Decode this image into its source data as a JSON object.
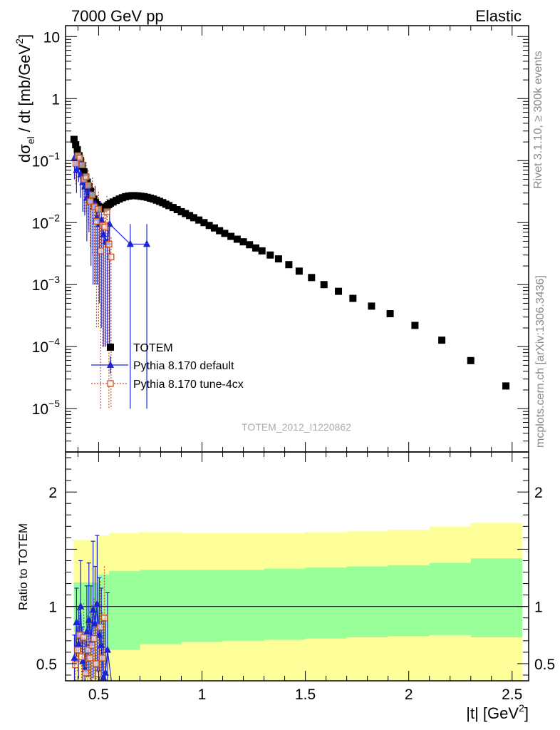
{
  "header": {
    "left": "7000 GeV pp",
    "right": "Elastic"
  },
  "side_labels": {
    "rivet": "Rivet 3.1.10, ≥ 300k events",
    "mcplots": "mcplots.cern.ch [arXiv:1306.3436]"
  },
  "watermark": "TOTEM_2012_I1220862",
  "chart_data": [
    {
      "type": "scatter",
      "panel": "main",
      "ylabel": "dσel / dt [mb/GeV2]",
      "ylabel_parts": {
        "d": "d",
        "sigma": "σ",
        "sub": "el",
        "rest": " / dt [mb/GeV",
        "sup": "2",
        "close": "]"
      },
      "yscale": "log",
      "xlim": [
        0.34,
        2.58
      ],
      "ylim": [
        2e-06,
        15
      ],
      "yticks": [
        {
          "v": 10,
          "label": "10"
        },
        {
          "v": 1,
          "label": "1"
        },
        {
          "v": 0.1,
          "base": "10",
          "exp": "−1"
        },
        {
          "v": 0.01,
          "base": "10",
          "exp": "−2"
        },
        {
          "v": 0.001,
          "base": "10",
          "exp": "−3"
        },
        {
          "v": 0.0001,
          "base": "10",
          "exp": "−4"
        },
        {
          "v": 1e-05,
          "base": "10",
          "exp": "−5"
        }
      ],
      "legend_position": "middle-left",
      "series": [
        {
          "name": "TOTEM",
          "color": "#000000",
          "marker": "square-filled",
          "x": [
            0.381,
            0.389,
            0.397,
            0.405,
            0.413,
            0.421,
            0.429,
            0.437,
            0.445,
            0.453,
            0.461,
            0.469,
            0.477,
            0.485,
            0.493,
            0.501,
            0.509,
            0.517,
            0.525,
            0.533,
            0.541,
            0.549,
            0.557,
            0.57,
            0.585,
            0.6,
            0.615,
            0.63,
            0.645,
            0.66,
            0.675,
            0.69,
            0.705,
            0.72,
            0.735,
            0.75,
            0.765,
            0.78,
            0.795,
            0.81,
            0.825,
            0.84,
            0.86,
            0.88,
            0.9,
            0.92,
            0.94,
            0.96,
            0.985,
            1.01,
            1.035,
            1.06,
            1.085,
            1.11,
            1.14,
            1.17,
            1.2,
            1.23,
            1.26,
            1.29,
            1.33,
            1.37,
            1.42,
            1.47,
            1.53,
            1.59,
            1.66,
            1.73,
            1.82,
            1.91,
            2.03,
            2.16,
            2.3,
            2.47
          ],
          "y": [
            0.22,
            0.18,
            0.15,
            0.12,
            0.1,
            0.082,
            0.066,
            0.054,
            0.045,
            0.038,
            0.032,
            0.027,
            0.024,
            0.021,
            0.0195,
            0.018,
            0.0172,
            0.0168,
            0.017,
            0.0176,
            0.0185,
            0.0195,
            0.0205,
            0.0215,
            0.0228,
            0.024,
            0.0252,
            0.0262,
            0.0268,
            0.0272,
            0.0272,
            0.027,
            0.0266,
            0.0262,
            0.0256,
            0.0248,
            0.024,
            0.023,
            0.022,
            0.021,
            0.0198,
            0.0188,
            0.0175,
            0.0162,
            0.015,
            0.014,
            0.013,
            0.012,
            0.011,
            0.01,
            0.009,
            0.0082,
            0.0074,
            0.0067,
            0.006,
            0.0054,
            0.0049,
            0.0044,
            0.0039,
            0.0035,
            0.003,
            0.0026,
            0.0021,
            0.00165,
            0.0013,
            0.001,
            0.00078,
            0.0006,
            0.00045,
            0.00034,
            0.00022,
            0.000127,
            5.95e-05,
            2.32e-05
          ]
        },
        {
          "name": "Pythia 8.170 default",
          "color": "#1a24d6",
          "marker": "triangle-filled",
          "x": [
            0.383,
            0.393,
            0.403,
            0.413,
            0.423,
            0.433,
            0.443,
            0.453,
            0.463,
            0.473,
            0.483,
            0.493,
            0.503,
            0.513,
            0.523,
            0.533,
            0.543,
            0.553,
            0.573,
            0.593,
            0.613,
            0.633,
            0.653,
            0.673,
            0.693,
            0.713,
            0.733
          ],
          "y": [
            0.11,
            0.07,
            0.095,
            0.06,
            0.045,
            0.038,
            0.025,
            0.032,
            0.022,
            0.018,
            0.02,
            0.012,
            0.0095,
            0.011,
            0.0065,
            0.005,
            0.0048,
            0.0095,
            null,
            null,
            null,
            null,
            0.0045,
            null,
            null,
            null,
            0.0045
          ],
          "yerr_lo": [
            0.06,
            0.04,
            0.05,
            0.035,
            0.03,
            0.025,
            0.02,
            0.025,
            0.02,
            0.017,
            0.019,
            0.011,
            0.009,
            0.0108,
            0.0064,
            0.0049,
            0.0047,
            0.0094,
            null,
            null,
            null,
            null,
            0.00449,
            null,
            null,
            null,
            0.00449
          ],
          "yerr_hi": [
            0.06,
            0.04,
            0.05,
            0.035,
            0.03,
            0.025,
            0.02,
            0.025,
            0.02,
            0.017,
            0.019,
            0.011,
            0.009,
            0.01,
            0.006,
            0.005,
            0.005,
            0.005,
            null,
            null,
            null,
            null,
            0.005,
            null,
            null,
            null,
            0.005
          ]
        },
        {
          "name": "Pythia 8.170 tune-4cx",
          "color": "#c8521a",
          "marker": "square-open",
          "x": [
            0.383,
            0.393,
            0.403,
            0.413,
            0.423,
            0.433,
            0.443,
            0.453,
            0.463,
            0.473,
            0.483,
            0.493,
            0.503,
            0.513,
            0.523,
            0.533,
            0.543,
            0.553
          ],
          "y": [
            0.09,
            0.12,
            0.11,
            0.085,
            0.05,
            0.055,
            0.04,
            0.022,
            0.028,
            0.018,
            0.0105,
            0.0165,
            0.0035,
            0.009,
            0.0085,
            0.015,
            0.0045,
            0.0028
          ],
          "yerr_lo": [
            0.05,
            0.06,
            0.06,
            0.05,
            0.035,
            0.04,
            0.03,
            0.018,
            0.025,
            0.017,
            0.0103,
            0.0163,
            0.00349,
            0.0089,
            0.0084,
            0.0149,
            0.00449,
            0.00279
          ],
          "yerr_hi": [
            0.05,
            0.06,
            0.06,
            0.05,
            0.035,
            0.04,
            0.03,
            0.018,
            0.025,
            0.017,
            0.01,
            0.015,
            0.004,
            0.008,
            0.008,
            0.012,
            0.004,
            0.003
          ]
        }
      ]
    },
    {
      "type": "scatter",
      "panel": "ratio",
      "ylabel": "Ratio to TOTEM",
      "xlabel": "|t| [GeV2]",
      "xlabel_parts": {
        "base": "|t| [GeV",
        "sup": "2",
        "close": "]"
      },
      "xlim": [
        0.34,
        2.58
      ],
      "ylim": [
        0.35,
        2.35
      ],
      "xticks": [
        {
          "v": 0.5,
          "label": "0.5"
        },
        {
          "v": 1,
          "label": "1"
        },
        {
          "v": 1.5,
          "label": "1.5"
        },
        {
          "v": 2,
          "label": "2"
        },
        {
          "v": 2.5,
          "label": "2.5"
        }
      ],
      "yticks": [
        {
          "v": 0.5,
          "label": "0.5"
        },
        {
          "v": 1,
          "label": "1"
        },
        {
          "v": 2,
          "label": "2"
        }
      ],
      "reference_line": 1,
      "bands": {
        "x": [
          0.38,
          0.5,
          0.55,
          0.7,
          0.9,
          1.1,
          1.3,
          1.5,
          1.7,
          1.9,
          2.1,
          2.3,
          2.55
        ],
        "green_lo": [
          0.78,
          0.64,
          0.62,
          0.67,
          0.69,
          0.7,
          0.71,
          0.72,
          0.73,
          0.74,
          0.75,
          0.73,
          0.72
        ],
        "green_hi": [
          1.21,
          1.28,
          1.31,
          1.32,
          1.32,
          1.32,
          1.33,
          1.34,
          1.35,
          1.36,
          1.38,
          1.42,
          1.45
        ],
        "yellow_lo": [
          0.35,
          0.35,
          0.35,
          0.35,
          0.35,
          0.35,
          0.35,
          0.35,
          0.35,
          0.35,
          0.35,
          0.35,
          0.35
        ],
        "yellow_hi": [
          1.58,
          1.62,
          1.64,
          1.65,
          1.64,
          1.64,
          1.64,
          1.65,
          1.66,
          1.67,
          1.7,
          1.73,
          1.77
        ],
        "green_color": "#99ff99",
        "yellow_color": "#ffff99"
      },
      "series": [
        {
          "name": "Pythia 8.170 default",
          "color": "#1a24d6",
          "x": [
            0.383,
            0.393,
            0.403,
            0.413,
            0.423,
            0.433,
            0.443,
            0.453,
            0.463,
            0.473,
            0.483,
            0.493,
            0.503,
            0.513,
            0.523,
            0.533,
            0.543
          ],
          "y": [
            0.55,
            0.86,
            0.67,
            1.0,
            0.52,
            0.45,
            0.78,
            0.88,
            0.68,
            0.97,
            0.85,
            1.02,
            0.75,
            0.66,
            0.38,
            0.42,
            0.62
          ],
          "yerr": [
            0.2,
            0.3,
            0.3,
            0.4,
            0.3,
            0.3,
            0.4,
            0.5,
            0.5,
            0.6,
            0.5,
            0.6,
            0.5,
            0.5,
            0.5,
            0.5,
            0.5
          ]
        },
        {
          "name": "Pythia 8.170 tune-4cx",
          "color": "#c8521a",
          "x": [
            0.381,
            0.391,
            0.401,
            0.411,
            0.421,
            0.431,
            0.441,
            0.451,
            0.461,
            0.471,
            0.481,
            0.491,
            0.501,
            0.511,
            0.521
          ],
          "y": [
            0.49,
            0.62,
            0.75,
            0.56,
            0.73,
            0.42,
            0.62,
            0.55,
            0.66,
            0.72,
            0.5,
            0.41,
            0.82,
            0.55,
            0.9
          ],
          "yerr": [
            0.15,
            0.2,
            0.25,
            0.25,
            0.3,
            0.3,
            0.3,
            0.3,
            0.35,
            0.35,
            0.35,
            0.4,
            0.4,
            0.4,
            0.45
          ]
        }
      ]
    }
  ]
}
